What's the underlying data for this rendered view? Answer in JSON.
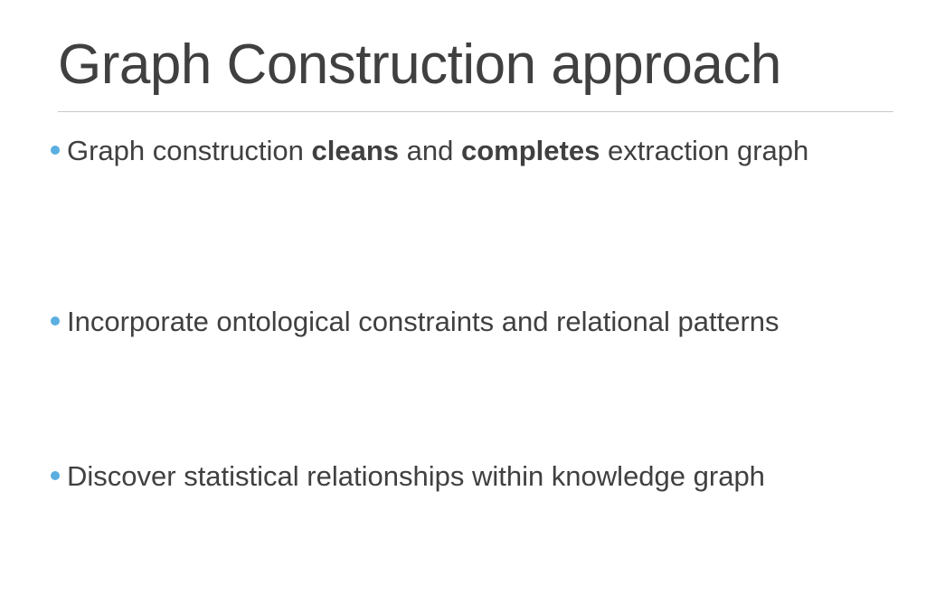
{
  "slide": {
    "title": "Graph Construction approach",
    "bullets": [
      {
        "parts": [
          "Graph construction ",
          "cleans",
          " and ",
          "completes",
          " extraction graph"
        ]
      },
      {
        "text": "Incorporate ontological constraints and relational patterns"
      },
      {
        "text": "Discover statistical relationships within knowledge graph"
      }
    ]
  },
  "colors": {
    "text": "#404040",
    "bullet": "#5aaee0",
    "rule": "#c8c8c8",
    "background": "#ffffff"
  }
}
